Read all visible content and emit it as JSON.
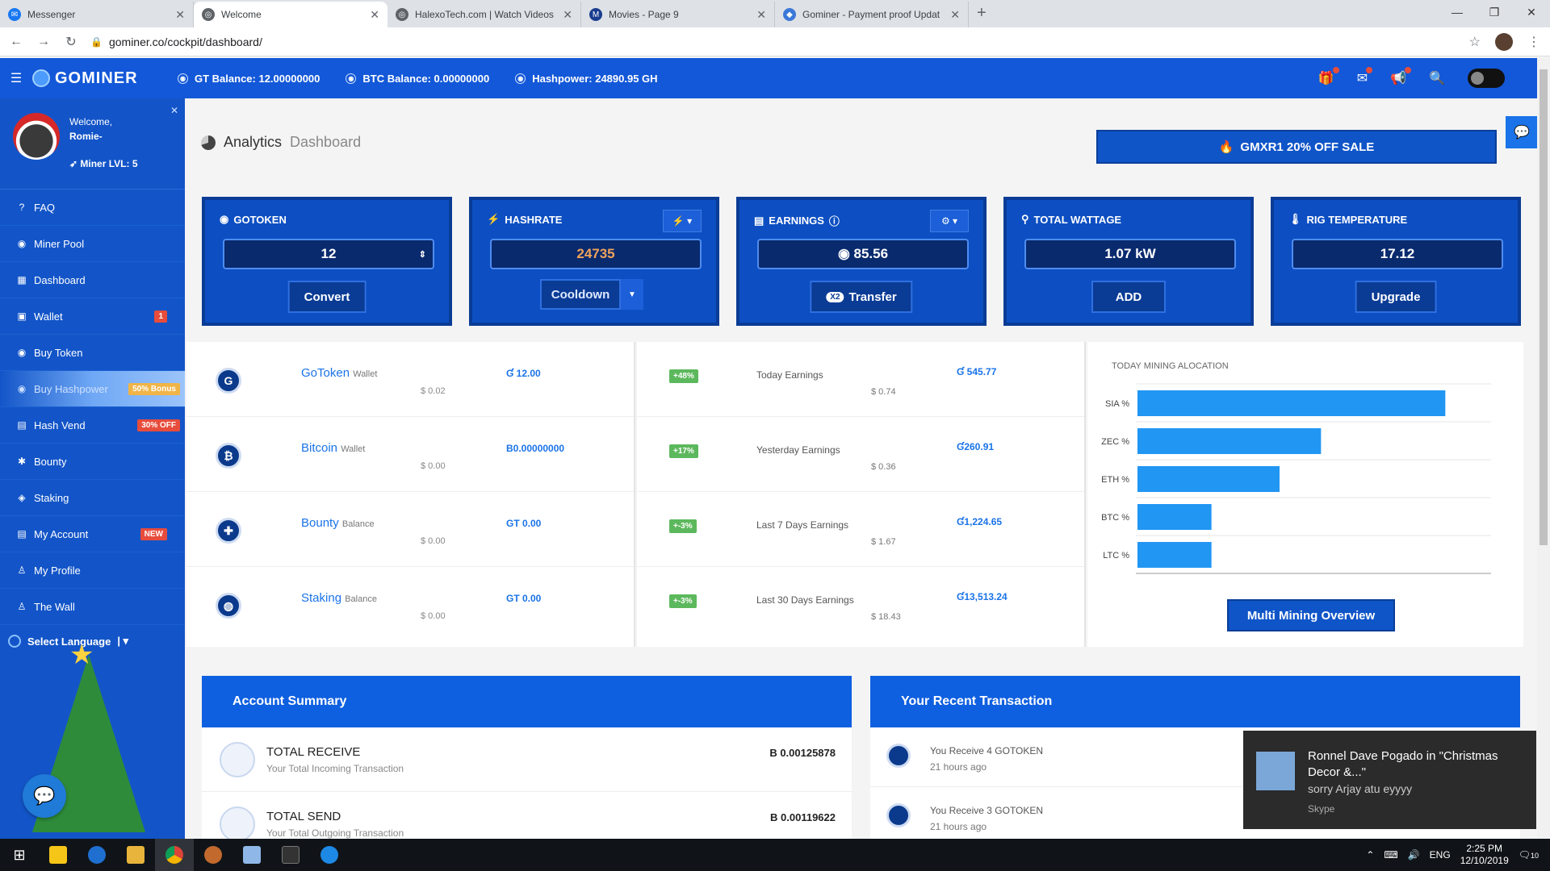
{
  "browser": {
    "tabs": [
      {
        "title": "Messenger",
        "color": "#1877f2",
        "glyph": "✉"
      },
      {
        "title": "Welcome",
        "color": "#5f6368",
        "glyph": "◎"
      },
      {
        "title": "HalexoTech.com | Watch Videos",
        "color": "#5f6368",
        "glyph": "◎"
      },
      {
        "title": "Movies - Page 9",
        "color": "#1a3d8f",
        "glyph": "M"
      },
      {
        "title": "Gominer - Payment proof Updat",
        "color": "#3a78d8",
        "glyph": "◆"
      }
    ],
    "url": "gominer.co/cockpit/dashboard/"
  },
  "header": {
    "logo": "GOMINER",
    "gt_balance": "GT Balance: 12.00000000",
    "btc_balance": "BTC Balance: 0.00000000",
    "hashpower": "Hashpower: 24890.95 GH"
  },
  "sidebar": {
    "welcome": "Welcome,",
    "username": "Romie-",
    "level": "Miner LVL: 5",
    "items": [
      {
        "label": "FAQ",
        "icon": "?"
      },
      {
        "label": "Miner Pool",
        "icon": "◉"
      },
      {
        "label": "Dashboard",
        "icon": "▦"
      },
      {
        "label": "Wallet",
        "icon": "▣",
        "badge": "1"
      },
      {
        "label": "Buy Token",
        "icon": "◉"
      },
      {
        "label": "Buy Hashpower",
        "icon": "◉",
        "badge": "50% Bonus"
      },
      {
        "label": "Hash Vend",
        "icon": "▤",
        "badge": "30% OFF"
      },
      {
        "label": "Bounty",
        "icon": "✱"
      },
      {
        "label": "Staking",
        "icon": "◈"
      },
      {
        "label": "My Account",
        "icon": "▤",
        "badge": "NEW"
      },
      {
        "label": "My Profile",
        "icon": "♙"
      },
      {
        "label": "The Wall",
        "icon": "♙"
      }
    ],
    "language": "Select Language"
  },
  "main": {
    "title": "Analytics",
    "subtitle": "Dashboard",
    "sale_button": "GMXR1 20% OFF SALE",
    "cards": {
      "gotoken": {
        "title": "GOTOKEN",
        "value": "12",
        "action": "Convert"
      },
      "hashrate": {
        "title": "HASHRATE",
        "value": "24735",
        "action": "Cooldown"
      },
      "earnings": {
        "title": "EARNINGS",
        "value": "85.56",
        "action": "Transfer"
      },
      "wattage": {
        "title": "TOTAL WATTAGE",
        "value": "1.07 kW",
        "action": "ADD"
      },
      "temperature": {
        "title": "RIG TEMPERATURE",
        "value": "17.12",
        "action": "Upgrade"
      }
    },
    "wallets": [
      {
        "name": "GoToken",
        "suffix": "Wallet",
        "usd": "$ 0.02",
        "value": "Ɠ 12.00",
        "glyph": "G"
      },
      {
        "name": "Bitcoin",
        "suffix": "Wallet",
        "usd": "$ 0.00",
        "value": "B0.00000000",
        "glyph": "₿"
      },
      {
        "name": "Bounty",
        "suffix": "Balance",
        "usd": "$ 0.00",
        "value": "GT 0.00",
        "glyph": "✚"
      },
      {
        "name": "Staking",
        "suffix": "Balance",
        "usd": "$ 0.00",
        "value": "GT 0.00",
        "glyph": "◍"
      }
    ],
    "earnings": [
      {
        "pct": "+48%",
        "label": "Today Earnings",
        "usd": "$ 0.74",
        "value": "Ɠ 545.77"
      },
      {
        "pct": "+17%",
        "label": "Yesterday Earnings",
        "usd": "$ 0.36",
        "value": "Ɠ260.91"
      },
      {
        "pct": "+-3%",
        "label": "Last 7 Days Earnings",
        "usd": "$ 1.67",
        "value": "Ɠ1,224.65"
      },
      {
        "pct": "+-3%",
        "label": "Last 30 Days Earnings",
        "usd": "$ 18.43",
        "value": "Ɠ13,513.24"
      }
    ],
    "multi_button": "Multi Mining Overview",
    "account_summary": {
      "title": "Account Summary",
      "rows": [
        {
          "title": "TOTAL RECEIVE",
          "sub": "Your Total Incoming Transaction",
          "value": "B 0.00125878"
        },
        {
          "title": "TOTAL SEND",
          "sub": "Your Total Outgoing Transaction",
          "value": "B 0.00119622"
        }
      ]
    },
    "transactions": {
      "title": "Your Recent Transaction",
      "rows": [
        {
          "text": "You Receive 4 GOTOKEN",
          "time": "21 hours ago"
        },
        {
          "text": "You Receive 3 GOTOKEN",
          "time": "21 hours ago"
        }
      ]
    }
  },
  "chart_data": {
    "type": "bar",
    "orientation": "horizontal",
    "title": "TODAY MINING ALOCATION",
    "categories": [
      "SIA %",
      "ZEC %",
      "ETH %",
      "BTC %",
      "LTC %"
    ],
    "values": [
      52,
      31,
      24,
      12.5,
      12.5
    ],
    "xlim": [
      0,
      60
    ],
    "color": "#2196f3"
  },
  "toast": {
    "title": "Ronnel Dave Pogado in \"Christmas Decor &...\"",
    "body": "sorry Arjay atu eyyyy",
    "app": "Skype"
  },
  "taskbar": {
    "lang": "ENG",
    "time": "2:25 PM",
    "date": "12/10/2019",
    "notif_count": "10"
  }
}
